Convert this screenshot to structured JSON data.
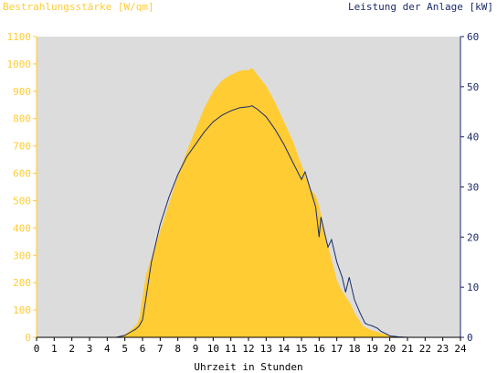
{
  "chart_data": {
    "type": "area",
    "left_axis_label": "Bestrahlungsstärke [W/qm]",
    "right_axis_label": "Leistung der Anlage [kW]",
    "xlabel": "Uhrzeit in Stunden",
    "xlim": [
      0,
      24
    ],
    "ylim_left": [
      0,
      1100
    ],
    "ylim_right": [
      0,
      60
    ],
    "x_ticks": [
      "0",
      "1",
      "2",
      "3",
      "4",
      "5",
      "6",
      "7",
      "8",
      "9",
      "10",
      "11",
      "12",
      "13",
      "14",
      "15",
      "16",
      "17",
      "18",
      "19",
      "20",
      "21",
      "22",
      "23",
      "24"
    ],
    "y_left_ticks": [
      "0",
      "100",
      "200",
      "300",
      "400",
      "500",
      "600",
      "700",
      "800",
      "900",
      "1000",
      "1100"
    ],
    "y_right_ticks": [
      "0",
      "10",
      "20",
      "30",
      "40",
      "50",
      "60"
    ],
    "grid": false,
    "colors": {
      "irradiance": "#ffcc33",
      "power": "#1a2b6b",
      "plot_bg": "#dcdcdc",
      "left_axis": "#ffcc33",
      "right_axis": "#1a2b6b"
    },
    "series": [
      {
        "axis": "left",
        "style": "area",
        "x": [
          0,
          4.5,
          5.0,
          5.4,
          5.7,
          5.85,
          6.0,
          6.2,
          6.5,
          7.0,
          7.5,
          8.0,
          8.5,
          9.0,
          9.5,
          10.0,
          10.5,
          11.0,
          11.5,
          12.0,
          12.2,
          12.5,
          13.0,
          13.5,
          14.0,
          14.5,
          15.0,
          15.5,
          15.8,
          16.0,
          16.2,
          16.4,
          16.6,
          16.8,
          17.0,
          17.2,
          17.5,
          17.8,
          18.0,
          18.3,
          18.5,
          18.8,
          19.0,
          19.3,
          19.5,
          19.8,
          20.0,
          20.3,
          20.5,
          21.0,
          24.0
        ],
        "values": [
          0,
          0,
          10,
          30,
          50,
          80,
          150,
          230,
          290,
          390,
          490,
          590,
          680,
          760,
          840,
          900,
          940,
          960,
          975,
          978,
          985,
          960,
          920,
          860,
          790,
          720,
          630,
          540,
          520,
          480,
          420,
          360,
          310,
          260,
          210,
          180,
          150,
          120,
          90,
          60,
          40,
          30,
          25,
          20,
          15,
          10,
          6,
          3,
          1,
          0,
          0
        ]
      },
      {
        "axis": "right",
        "style": "line",
        "x": [
          0,
          4.5,
          5.0,
          5.3,
          5.6,
          5.8,
          6.0,
          6.2,
          6.5,
          7.0,
          7.5,
          8.0,
          8.5,
          9.0,
          9.5,
          10.0,
          10.5,
          11.0,
          11.5,
          12.0,
          12.2,
          12.5,
          13.0,
          13.5,
          14.0,
          14.5,
          15.0,
          15.2,
          15.5,
          15.8,
          16.0,
          16.1,
          16.3,
          16.5,
          16.7,
          17.0,
          17.3,
          17.5,
          17.7,
          18.0,
          18.3,
          18.6,
          18.8,
          19.0,
          19.3,
          19.5,
          19.8,
          20.0,
          20.5,
          21.0,
          24.0
        ],
        "values": [
          0,
          0,
          0.4,
          1.0,
          1.6,
          2.2,
          3.5,
          8.0,
          15.0,
          22.5,
          28.0,
          32.5,
          36.0,
          38.5,
          41.0,
          43.0,
          44.3,
          45.2,
          45.8,
          46.0,
          46.2,
          45.5,
          44.0,
          41.5,
          38.5,
          35.0,
          31.5,
          33.0,
          29.5,
          26.0,
          20.0,
          24.0,
          21.0,
          18.0,
          19.5,
          15.0,
          12.0,
          9.0,
          12.0,
          7.5,
          5.0,
          2.8,
          2.5,
          2.3,
          1.8,
          1.2,
          0.7,
          0.3,
          0.1,
          0,
          0
        ]
      }
    ]
  }
}
